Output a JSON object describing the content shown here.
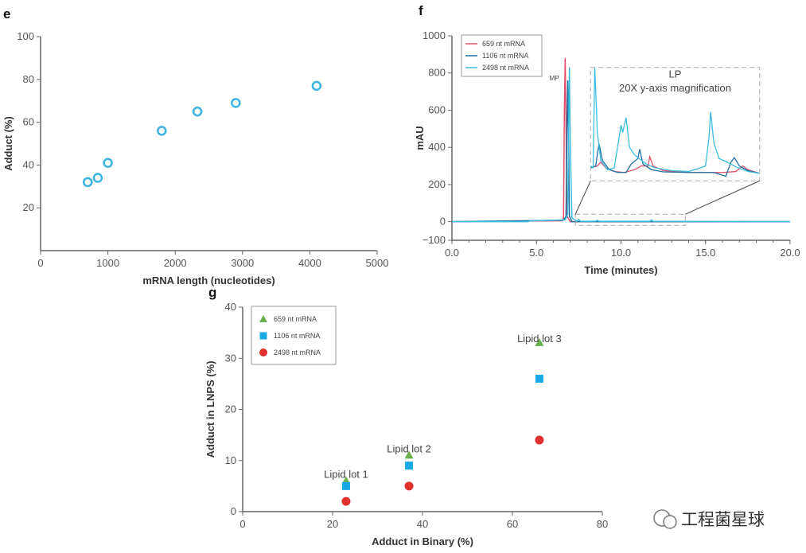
{
  "chart_data": [
    {
      "panel": "e",
      "type": "scatter",
      "xlabel": "mRNA length (nucleotides)",
      "ylabel": "Adduct (%)",
      "xlim": [
        0,
        5000
      ],
      "ylim": [
        0,
        100
      ],
      "xticks": [
        "0",
        "1000",
        "2000",
        "3000",
        "4000",
        "5000"
      ],
      "yticks": [
        "20",
        "40",
        "60",
        "80",
        "100"
      ],
      "color": "#3bb4e0",
      "marker": "open-circle",
      "x": [
        700,
        850,
        1000,
        1800,
        2330,
        2900,
        4100
      ],
      "y": [
        32,
        34,
        41,
        56,
        65,
        69,
        77
      ]
    },
    {
      "panel": "f",
      "type": "line",
      "xlabel": "Time (minutes)",
      "ylabel": "mAU",
      "xlim": [
        0,
        20
      ],
      "ylim": [
        -100,
        1000
      ],
      "xticks": [
        "0.0",
        "5.0",
        "10.0",
        "15.0",
        "20.0"
      ],
      "yticks": [
        "-100",
        "0",
        "200",
        "400",
        "600",
        "800",
        "1000"
      ],
      "annotations": {
        "mp": "MP",
        "inset_title": "LP",
        "inset_subtitle": "20X y-axis magnification"
      },
      "series": [
        {
          "name": "659 nt mRNA",
          "color": "#e0506a",
          "x": [
            0,
            6.5,
            6.6,
            6.65,
            6.7,
            6.75,
            6.8,
            7.0,
            20
          ],
          "y": [
            0,
            5,
            20,
            600,
            880,
            500,
            30,
            0,
            0
          ],
          "inset": {
            "x": [
              8.2,
              8.6,
              8.8,
              9.1,
              9.6,
              10.2,
              10.8,
              11.2,
              11.6,
              11.7,
              11.9,
              12.5,
              14,
              16,
              16.8,
              17.2,
              17.5,
              18.2
            ],
            "y": [
              290,
              300,
              320,
              290,
              270,
              265,
              280,
              300,
              300,
              350,
              300,
              275,
              265,
              265,
              270,
              300,
              280,
              260
            ]
          }
        },
        {
          "name": "1106 nt mRNA",
          "color": "#1f6f9f",
          "x": [
            0,
            6.6,
            6.75,
            6.8,
            6.85,
            6.9,
            6.95,
            7.1,
            20
          ],
          "y": [
            0,
            8,
            30,
            500,
            760,
            400,
            30,
            0,
            0
          ],
          "inset": {
            "x": [
              8.2,
              8.5,
              8.7,
              8.9,
              9.3,
              9.8,
              10.3,
              10.6,
              11.0,
              11.1,
              11.3,
              11.8,
              12.5,
              14,
              15.5,
              16.0,
              16.2,
              16.5,
              16.7,
              17.0,
              17.5,
              18.2
            ],
            "y": [
              290,
              300,
              420,
              330,
              280,
              265,
              265,
              310,
              340,
              390,
              310,
              280,
              268,
              265,
              265,
              250,
              245,
              320,
              345,
              300,
              275,
              260
            ]
          }
        },
        {
          "name": "2498 nt mRNA",
          "color": "#3bbde0",
          "x": [
            0,
            4.5,
            4.6,
            6.7,
            6.85,
            6.9,
            6.95,
            7.0,
            7.1,
            7.4,
            7.5,
            7.6,
            8.5,
            8.6,
            8.7,
            11.7,
            11.8,
            11.9,
            20
          ],
          "y": [
            0,
            0,
            4,
            10,
            40,
            500,
            830,
            400,
            20,
            2,
            12,
            2,
            2,
            8,
            2,
            2,
            10,
            2,
            0
          ],
          "inset": {
            "x": [
              8.2,
              8.35,
              8.45,
              8.6,
              8.8,
              9.2,
              9.6,
              9.9,
              10.0,
              10.1,
              10.3,
              10.5,
              10.8,
              11.2,
              11.5,
              12,
              13,
              14,
              14.7,
              15.0,
              15.2,
              15.3,
              15.5,
              15.8,
              16.3,
              16.8,
              17.5,
              18.2
            ],
            "y": [
              300,
              290,
              830,
              480,
              330,
              280,
              290,
              460,
              520,
              480,
              560,
              400,
              360,
              330,
              310,
              290,
              275,
              270,
              290,
              300,
              450,
              590,
              420,
              340,
              320,
              295,
              270,
              260
            ]
          }
        }
      ]
    },
    {
      "panel": "g",
      "type": "scatter",
      "xlabel": "Adduct in Binary (%)",
      "ylabel": "Adduct in LNPS (%)",
      "xlim": [
        0,
        80
      ],
      "ylim": [
        0,
        40
      ],
      "xticks": [
        "0",
        "20",
        "40",
        "60",
        "80"
      ],
      "yticks": [
        "0",
        "10",
        "20",
        "30",
        "40"
      ],
      "annotations": [
        "Lipid lot 1",
        "Lipid lot 2",
        "Lipid lot 3"
      ],
      "x": [
        23,
        37,
        66
      ],
      "series": [
        {
          "name": "659 nt mRNA",
          "color": "#6ab04c",
          "marker": "triangle",
          "values": [
            6,
            11,
            33
          ]
        },
        {
          "name": "1106 nt mRNA",
          "color": "#19a9e6",
          "marker": "square",
          "values": [
            5,
            9,
            26
          ]
        },
        {
          "name": "2498 nt mRNA",
          "color": "#e03030",
          "marker": "circle",
          "values": [
            2,
            5,
            14
          ]
        }
      ]
    }
  ],
  "watermark": "工程菌星球"
}
